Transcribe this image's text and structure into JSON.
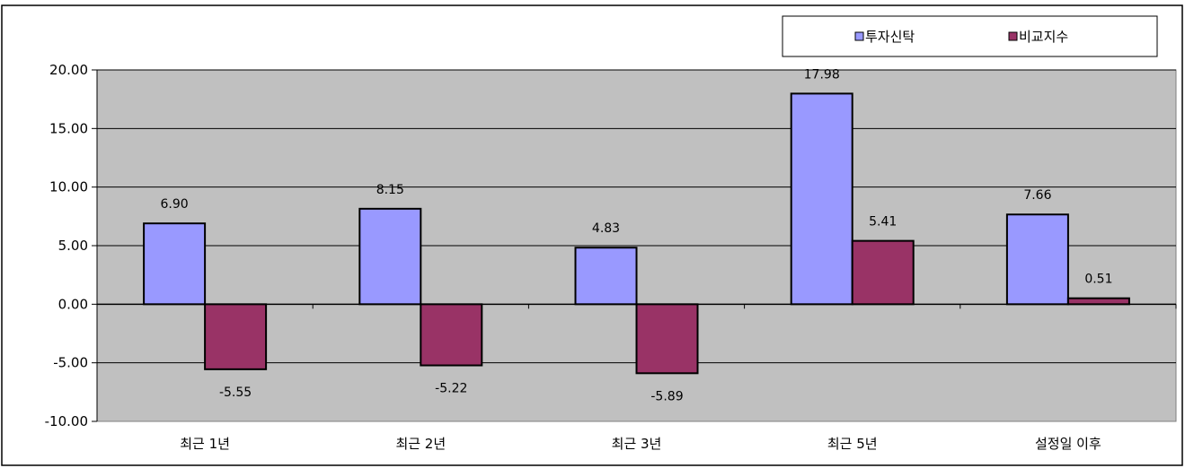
{
  "chart_data": {
    "type": "bar",
    "categories": [
      "최근 1년",
      "최근 2년",
      "최근 3년",
      "최근 5년",
      "설정일 이후"
    ],
    "series": [
      {
        "name": "투자신탁",
        "values": [
          6.9,
          8.15,
          4.83,
          17.98,
          7.66
        ],
        "color": "#9999FF"
      },
      {
        "name": "비교지수",
        "values": [
          -5.55,
          -5.22,
          -5.89,
          5.41,
          0.51
        ],
        "color": "#993366"
      }
    ],
    "ylim": [
      -10,
      20
    ],
    "yticks": [
      "20.00",
      "15.00",
      "10.00",
      "5.00",
      "0.00",
      "-5.00",
      "-10.00"
    ],
    "grid": true,
    "legend": "top-right",
    "plot_background": "#C0C0C0"
  }
}
